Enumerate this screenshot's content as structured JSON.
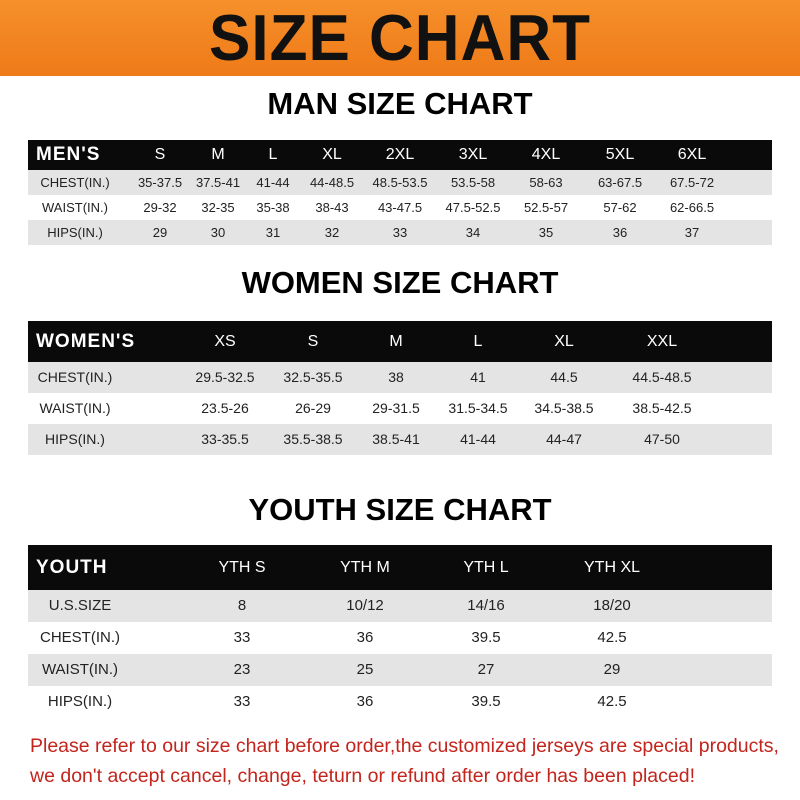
{
  "banner_title": "SIZE CHART",
  "men": {
    "title": "MAN SIZE CHART",
    "header": [
      "MEN'S",
      "S",
      "M",
      "L",
      "XL",
      "2XL",
      "3XL",
      "4XL",
      "5XL",
      "6XL"
    ],
    "rows": [
      [
        "CHEST(IN.)",
        "35-37.5",
        "37.5-41",
        "41-44",
        "44-48.5",
        "48.5-53.5",
        "53.5-58",
        "58-63",
        "63-67.5",
        "67.5-72"
      ],
      [
        "WAIST(IN.)",
        "29-32",
        "32-35",
        "35-38",
        "38-43",
        "43-47.5",
        "47.5-52.5",
        "52.5-57",
        "57-62",
        "62-66.5"
      ],
      [
        "HIPS(IN.)",
        "29",
        "30",
        "31",
        "32",
        "33",
        "34",
        "35",
        "36",
        "37"
      ]
    ]
  },
  "women": {
    "title": "WOMEN SIZE CHART",
    "header": [
      "WOMEN'S",
      "XS",
      "S",
      "M",
      "L",
      "XL",
      "XXL"
    ],
    "rows": [
      [
        "CHEST(IN.)",
        "29.5-32.5",
        "32.5-35.5",
        "38",
        "41",
        "44.5",
        "44.5-48.5"
      ],
      [
        "WAIST(IN.)",
        "23.5-26",
        "26-29",
        "29-31.5",
        "31.5-34.5",
        "34.5-38.5",
        "38.5-42.5"
      ],
      [
        "HIPS(IN.)",
        "33-35.5",
        "35.5-38.5",
        "38.5-41",
        "41-44",
        "44-47",
        "47-50"
      ]
    ]
  },
  "youth": {
    "title": "YOUTH SIZE CHART",
    "header": [
      "YOUTH",
      "YTH S",
      "YTH M",
      "YTH L",
      "YTH XL"
    ],
    "rows": [
      [
        "U.S.SIZE",
        "8",
        "10/12",
        "14/16",
        "18/20"
      ],
      [
        "CHEST(IN.)",
        "33",
        "36",
        "39.5",
        "42.5"
      ],
      [
        "WAIST(IN.)",
        "23",
        "25",
        "27",
        "29"
      ],
      [
        "HIPS(IN.)",
        "33",
        "36",
        "39.5",
        "42.5"
      ]
    ]
  },
  "notice": {
    "line1": "Please refer to our size chart before order,the customized jerseys are special products,",
    "line2": "we don't accept cancel, change, teturn or refund after order has been placed!"
  },
  "colors": {
    "banner": "#ef8020",
    "header_row": "#0a0a0a",
    "stripe": "#e4e4e4",
    "notice": "#c3241c"
  }
}
